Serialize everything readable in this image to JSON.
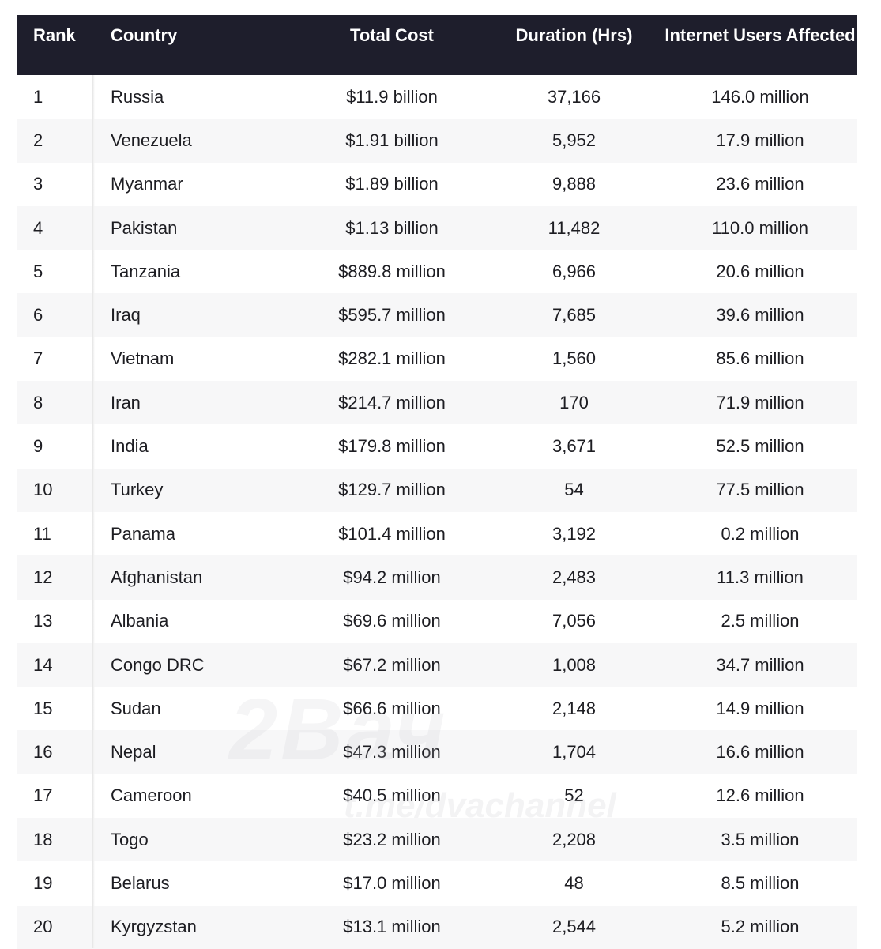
{
  "headers": [
    "Rank",
    "Country",
    "Total Cost",
    "Duration (Hrs)",
    "Internet Users Affected"
  ],
  "rows": [
    [
      "1",
      "Russia",
      "$11.9 billion",
      "37,166",
      "146.0 million"
    ],
    [
      "2",
      "Venezuela",
      "$1.91 billion",
      "5,952",
      "17.9 million"
    ],
    [
      "3",
      "Myanmar",
      "$1.89 billion",
      "9,888",
      "23.6 million"
    ],
    [
      "4",
      "Pakistan",
      "$1.13 billion",
      "11,482",
      "110.0 million"
    ],
    [
      "5",
      "Tanzania",
      "$889.8 million",
      "6,966",
      "20.6 million"
    ],
    [
      "6",
      "Iraq",
      "$595.7 million",
      "7,685",
      "39.6 million"
    ],
    [
      "7",
      "Vietnam",
      "$282.1 million",
      "1,560",
      "85.6 million"
    ],
    [
      "8",
      "Iran",
      "$214.7 million",
      "170",
      "71.9 million"
    ],
    [
      "9",
      "India",
      "$179.8 million",
      "3,671",
      "52.5 million"
    ],
    [
      "10",
      "Turkey",
      "$129.7 million",
      "54",
      "77.5 million"
    ],
    [
      "11",
      "Panama",
      "$101.4 million",
      "3,192",
      "0.2 million"
    ],
    [
      "12",
      "Afghanistan",
      "$94.2 million",
      "2,483",
      "11.3 million"
    ],
    [
      "13",
      "Albania",
      "$69.6 million",
      "7,056",
      "2.5 million"
    ],
    [
      "14",
      "Congo DRC",
      "$67.2 million",
      "1,008",
      "34.7 million"
    ],
    [
      "15",
      "Sudan",
      "$66.6 million",
      "2,148",
      "14.9 million"
    ],
    [
      "16",
      "Nepal",
      "$47.3 million",
      "1,704",
      "16.6 million"
    ],
    [
      "17",
      "Cameroon",
      "$40.5 million",
      "52",
      "12.6 million"
    ],
    [
      "18",
      "Togo",
      "$23.2 million",
      "2,208",
      "3.5 million"
    ],
    [
      "19",
      "Belarus",
      "$17.0 million",
      "48",
      "8.5 million"
    ],
    [
      "20",
      "Kyrgyzstan",
      "$13.1 million",
      "2,544",
      "5.2 million"
    ]
  ],
  "watermark": {
    "logo": "2Вач",
    "handle": "t.me/dvachannel"
  }
}
